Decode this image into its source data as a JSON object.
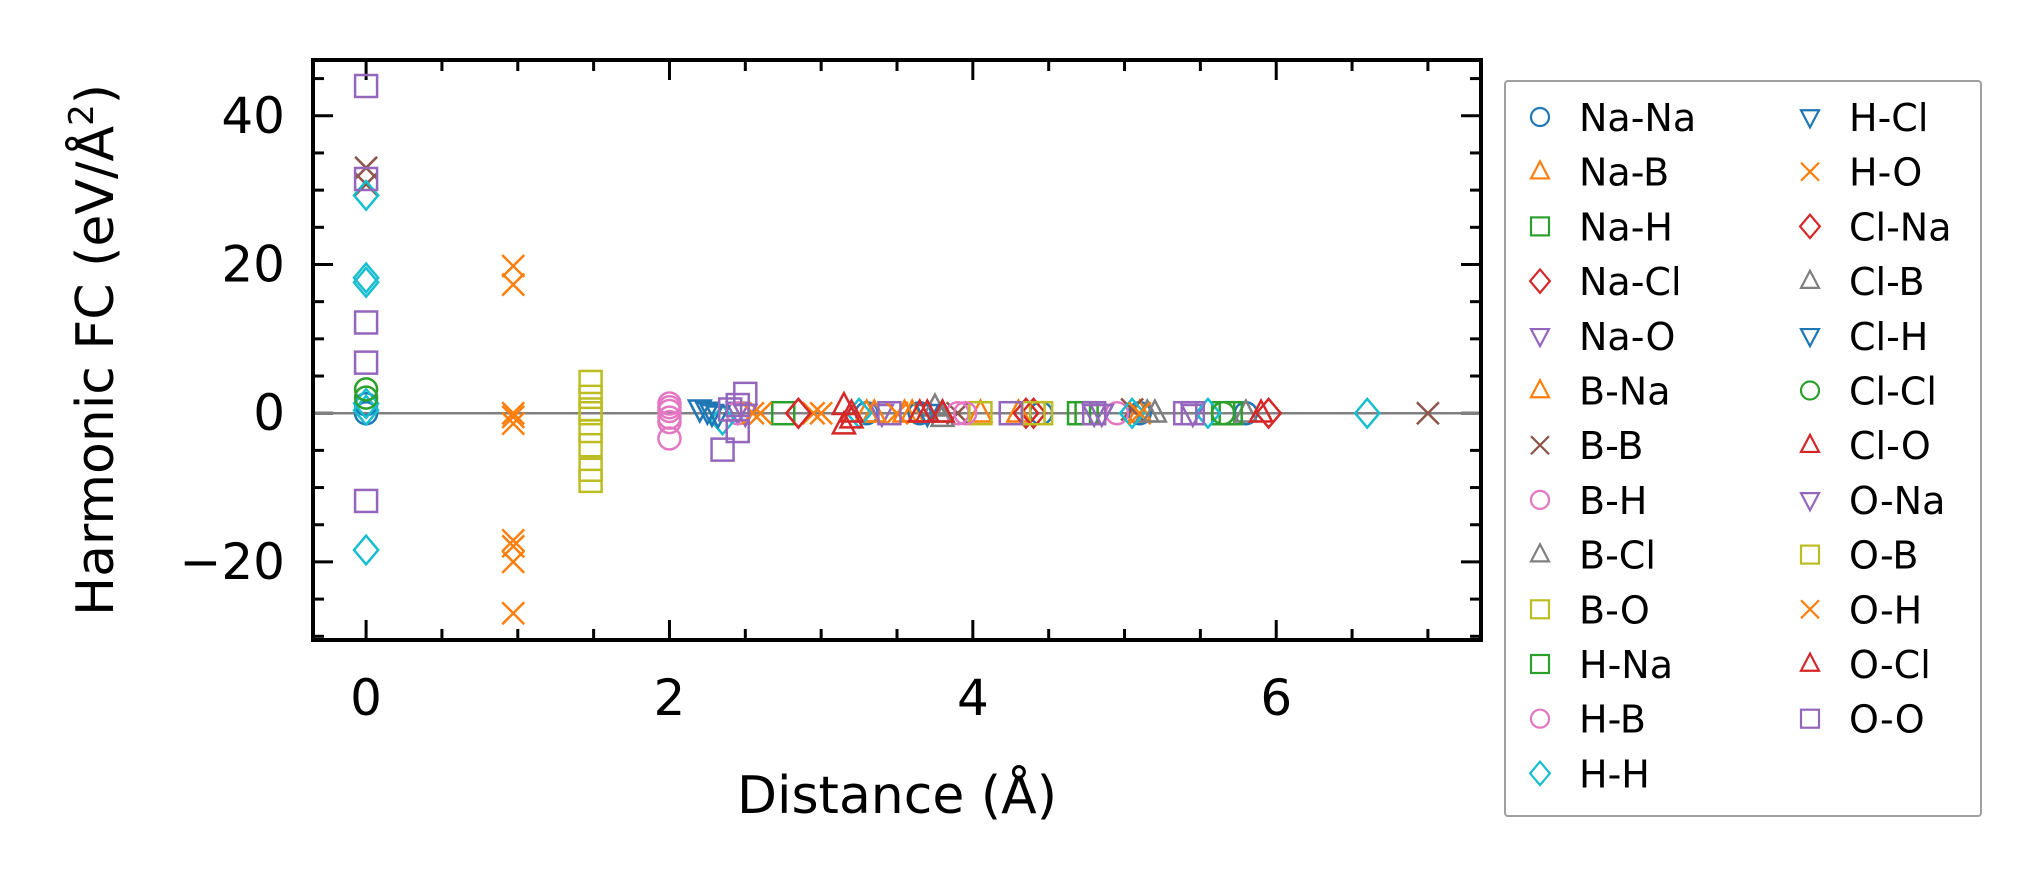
{
  "chart_data": {
    "type": "scatter",
    "title": "",
    "xlabel": "Distance (Å)",
    "ylabel_main": "Harmonic FC (eV/Å",
    "ylabel_sup": "2",
    "ylabel_end": ")",
    "xlim": [
      -0.35,
      7.35
    ],
    "ylim": [
      -30.5,
      47.5
    ],
    "xticks": [
      0,
      2,
      4,
      6
    ],
    "xtick_labels": [
      "0",
      "2",
      "4",
      "6"
    ],
    "yticks": [
      -20,
      0,
      20,
      40
    ],
    "ytick_labels": [
      "−20",
      "0",
      "20",
      "40"
    ],
    "zero_line": true,
    "legend_position": "outside-right",
    "series": [
      {
        "name": "Na-Na",
        "marker": "circle",
        "color": "#1f77b4",
        "x": [
          0,
          0,
          3.3,
          3.65,
          4.45,
          5.1,
          5.8
        ],
        "y": [
          0,
          1.2,
          0,
          0,
          0,
          0,
          0
        ]
      },
      {
        "name": "Na-B",
        "marker": "triangle-up",
        "color": "#ff7f0e",
        "x": [
          3.3,
          3.55,
          3.8,
          4.3,
          5.1
        ],
        "y": [
          0,
          0,
          0,
          0,
          0
        ]
      },
      {
        "name": "Na-H",
        "marker": "square",
        "color": "#2ca02c",
        "x": [
          2.75,
          4.7,
          5.65
        ],
        "y": [
          0,
          0,
          0
        ]
      },
      {
        "name": "Na-Cl",
        "marker": "diamond",
        "color": "#d62728",
        "x": [
          2.85,
          4.35,
          5.95
        ],
        "y": [
          0,
          0,
          0
        ]
      },
      {
        "name": "Na-O",
        "marker": "triangle-down",
        "color": "#9467bd",
        "x": [
          2.45,
          3.4,
          4.8,
          5.45
        ],
        "y": [
          0.3,
          0,
          0,
          0
        ]
      },
      {
        "name": "B-Na",
        "marker": "triangle-up",
        "color": "#ff7f0e",
        "x": [
          3.35,
          3.6,
          4.05
        ],
        "y": [
          0,
          0,
          0
        ]
      },
      {
        "name": "B-B",
        "marker": "x",
        "color": "#8c564b",
        "x": [
          0,
          0,
          3.9,
          5.05,
          7.0
        ],
        "y": [
          33,
          30.8,
          0,
          0.5,
          0
        ]
      },
      {
        "name": "B-H",
        "marker": "circle",
        "color": "#e377c2",
        "x": [
          2.0,
          2.0,
          2.0,
          2.0,
          2.0,
          2.45,
          3.9,
          4.95
        ],
        "y": [
          1.3,
          0.3,
          -0.6,
          -1.2,
          -3.4,
          0,
          0,
          0
        ]
      },
      {
        "name": "B-Cl",
        "marker": "triangle-up",
        "color": "#7f7f7f",
        "x": [
          3.75,
          3.8,
          5.15,
          5.8
        ],
        "y": [
          0.8,
          -0.6,
          0,
          0
        ]
      },
      {
        "name": "B-O",
        "marker": "square",
        "color": "#bcbd22",
        "x": [
          1.48,
          1.48,
          1.48,
          1.48,
          1.48,
          1.48,
          1.48,
          4.05,
          4.45
        ],
        "y": [
          4.2,
          2.2,
          -2.4,
          -4.3,
          -7.6,
          -9.1,
          0,
          0,
          0
        ]
      },
      {
        "name": "H-Na",
        "marker": "square",
        "color": "#2ca02c",
        "x": [
          4.75,
          5.7
        ],
        "y": [
          0,
          0
        ]
      },
      {
        "name": "H-B",
        "marker": "circle",
        "color": "#e377c2",
        "x": [
          2.0,
          3.95
        ],
        "y": [
          0.8,
          0
        ]
      },
      {
        "name": "H-H",
        "marker": "diamond",
        "color": "#17becf",
        "x": [
          0,
          0,
          0,
          0,
          0,
          0,
          2.35,
          3.25,
          5.05,
          5.55,
          6.6
        ],
        "y": [
          29.3,
          18.2,
          17.6,
          1.3,
          0.4,
          -18.4,
          -0.9,
          0,
          0,
          0,
          0
        ]
      },
      {
        "name": "H-Cl",
        "marker": "triangle-down",
        "color": "#1f77b4",
        "x": [
          2.2,
          2.25,
          2.32
        ],
        "y": [
          0.6,
          0.3,
          -0.2
        ]
      },
      {
        "name": "H-O",
        "marker": "x",
        "color": "#ff7f0e",
        "x": [
          0.97,
          0.97,
          0.97,
          0.97,
          0.97,
          0.97,
          0.97,
          0.97,
          2.6,
          2.95,
          3.5,
          5.1
        ],
        "y": [
          19.8,
          17.3,
          -1.4,
          -17.1,
          -17.9,
          -20,
          -26.9,
          0,
          0,
          0,
          0,
          0
        ]
      },
      {
        "name": "Cl-Na",
        "marker": "diamond",
        "color": "#d62728",
        "x": [
          2.85,
          4.4
        ],
        "y": [
          0,
          0
        ]
      },
      {
        "name": "Cl-B",
        "marker": "triangle-up",
        "color": "#7f7f7f",
        "x": [
          3.8,
          5.2
        ],
        "y": [
          0,
          0
        ]
      },
      {
        "name": "Cl-H",
        "marker": "triangle-down",
        "color": "#1f77b4",
        "x": [
          2.28,
          3.7
        ],
        "y": [
          0,
          0
        ]
      },
      {
        "name": "Cl-Cl",
        "marker": "circle",
        "color": "#2ca02c",
        "x": [
          0,
          0,
          5.65
        ],
        "y": [
          3.2,
          2.1,
          0
        ]
      },
      {
        "name": "Cl-O",
        "marker": "triangle-up",
        "color": "#d62728",
        "x": [
          3.15,
          3.2,
          3.15,
          3.65,
          3.8,
          5.9
        ],
        "y": [
          1.0,
          -0.8,
          -1.6,
          0,
          0,
          0
        ]
      },
      {
        "name": "O-Na",
        "marker": "triangle-down",
        "color": "#9467bd",
        "x": [
          2.5,
          4.85
        ],
        "y": [
          0,
          0
        ]
      },
      {
        "name": "O-B",
        "marker": "square",
        "color": "#bcbd22",
        "x": [
          1.48,
          4.4
        ],
        "y": [
          0.5,
          0
        ]
      },
      {
        "name": "O-H",
        "marker": "x",
        "color": "#ff7f0e",
        "x": [
          0.97,
          2.55,
          3.0
        ],
        "y": [
          -0.5,
          0,
          0
        ]
      },
      {
        "name": "O-Cl",
        "marker": "triangle-up",
        "color": "#d62728",
        "x": [
          3.2,
          3.7
        ],
        "y": [
          0,
          0
        ]
      },
      {
        "name": "O-O",
        "marker": "square",
        "color": "#9467bd",
        "x": [
          0,
          0,
          0,
          0,
          0,
          2.35,
          2.4,
          2.45,
          2.45,
          2.5,
          3.45,
          4.25,
          4.8,
          5.4,
          5.45
        ],
        "y": [
          44,
          31.5,
          12.2,
          6.8,
          -11.8,
          -4.9,
          0.5,
          1.1,
          -2.4,
          2.6,
          0,
          0,
          0,
          0,
          0
        ]
      }
    ]
  }
}
